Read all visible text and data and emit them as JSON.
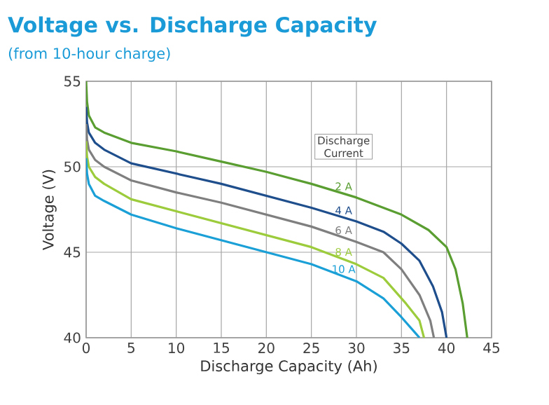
{
  "chart_data": {
    "type": "line",
    "title": "Voltage vs. Discharge Capacity",
    "subtitle": "(from 10-hour charge)",
    "xlabel": "Discharge Capacity (Ah)",
    "ylabel": "Voltage (V)",
    "legend_title": "Discharge Current",
    "xlim": [
      0,
      45
    ],
    "ylim": [
      40,
      55
    ],
    "xticks": [
      0,
      5,
      10,
      15,
      20,
      25,
      30,
      35,
      40,
      45
    ],
    "yticks": [
      40,
      45,
      50,
      55
    ],
    "grid": true,
    "marker": "none",
    "line_style": "solid",
    "series": [
      {
        "name": "2 A",
        "color": "#5a9e32",
        "x": [
          0,
          0.1,
          0.3,
          1,
          2,
          5,
          10,
          15,
          20,
          25,
          30,
          35,
          38,
          40,
          41,
          41.8,
          42.3
        ],
        "values": [
          55,
          53.8,
          53,
          52.3,
          52,
          51.4,
          50.9,
          50.3,
          49.7,
          49,
          48.2,
          47.2,
          46.3,
          45.3,
          44,
          42,
          40
        ]
      },
      {
        "name": "4 A",
        "color": "#1f4e8c",
        "x": [
          0,
          0.1,
          0.3,
          1,
          2,
          5,
          10,
          15,
          20,
          25,
          30,
          33,
          35,
          37,
          38.5,
          39.5,
          40
        ],
        "values": [
          53.5,
          52.6,
          52,
          51.4,
          51,
          50.2,
          49.6,
          49,
          48.3,
          47.6,
          46.8,
          46.2,
          45.5,
          44.5,
          43,
          41.5,
          40
        ]
      },
      {
        "name": "6 A",
        "color": "#7f7f7f",
        "x": [
          0,
          0.1,
          0.3,
          1,
          2,
          5,
          10,
          15,
          20,
          25,
          30,
          33,
          35,
          37,
          38.2,
          38.6
        ],
        "values": [
          52.5,
          51.6,
          51,
          50.4,
          50,
          49.2,
          48.5,
          47.9,
          47.2,
          46.5,
          45.6,
          45,
          44,
          42.5,
          41,
          40
        ]
      },
      {
        "name": "8 A",
        "color": "#9ccb3b",
        "x": [
          0,
          0.1,
          0.3,
          1,
          2,
          5,
          10,
          15,
          20,
          25,
          30,
          33,
          35.5,
          37,
          37.5
        ],
        "values": [
          51.5,
          50.6,
          50,
          49.4,
          49,
          48.1,
          47.4,
          46.7,
          46,
          45.3,
          44.3,
          43.5,
          42,
          41,
          40
        ]
      },
      {
        "name": "10 A",
        "color": "#1aa0d6",
        "x": [
          0,
          0.1,
          0.3,
          1,
          2,
          5,
          10,
          15,
          20,
          25,
          30,
          33,
          35,
          36.5,
          37
        ],
        "values": [
          50.5,
          49.6,
          49,
          48.3,
          48,
          47.2,
          46.4,
          45.7,
          45,
          44.3,
          43.3,
          42.3,
          41.2,
          40.3,
          40
        ]
      }
    ]
  }
}
